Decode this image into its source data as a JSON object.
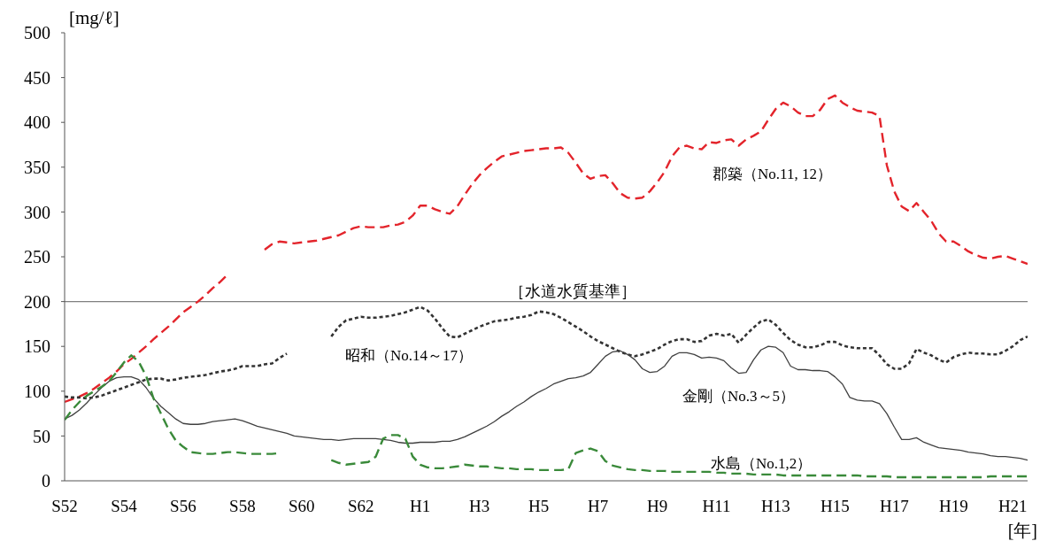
{
  "chart_data": {
    "type": "line",
    "ylabel": "[mg/ℓ]",
    "xlabel": "[年]",
    "categories": [
      "S52",
      null,
      null,
      null,
      null,
      null,
      null,
      null,
      "S54",
      null,
      null,
      null,
      null,
      null,
      null,
      null,
      "S56",
      null,
      null,
      null,
      null,
      null,
      null,
      null,
      "S58",
      null,
      null,
      null,
      null,
      null,
      null,
      null,
      "S60",
      null,
      null,
      null,
      null,
      null,
      null,
      null,
      "S62",
      null,
      null,
      null,
      null,
      null,
      null,
      null,
      "H1",
      null,
      null,
      null,
      null,
      null,
      null,
      null,
      "H3",
      null,
      null,
      null,
      null,
      null,
      null,
      null,
      "H5",
      null,
      null,
      null,
      null,
      null,
      null,
      null,
      "H7",
      null,
      null,
      null,
      null,
      null,
      null,
      null,
      "H9",
      null,
      null,
      null,
      null,
      null,
      null,
      null,
      "H11",
      null,
      null,
      null,
      null,
      null,
      null,
      null,
      "H13",
      null,
      null,
      null,
      null,
      null,
      null,
      null,
      "H15",
      null,
      null,
      null,
      null,
      null,
      null,
      null,
      "H17",
      null,
      null,
      null,
      null,
      null,
      null,
      null,
      "H19",
      null,
      null,
      null,
      null,
      null,
      null,
      null,
      "H21",
      null,
      null
    ],
    "ylim": [
      0,
      500
    ],
    "yticks": [
      0,
      50,
      100,
      150,
      200,
      250,
      300,
      350,
      400,
      450,
      500
    ],
    "ref_lines": [
      {
        "axis": "y",
        "value": 200,
        "label": "［水道水質基準］",
        "color": "#808080"
      }
    ],
    "series": [
      {
        "name": "郡築（No.11, 12）",
        "color": "#e3242b",
        "line_style": "dashed",
        "values": [
          88,
          91,
          94,
          98,
          103,
          109,
          115,
          122,
          130,
          136,
          143,
          150,
          158,
          165,
          172,
          180,
          188,
          194,
          200,
          207,
          215,
          222,
          230,
          null,
          null,
          null,
          null,
          258,
          264,
          267,
          266,
          265,
          266,
          267,
          268,
          270,
          272,
          274,
          278,
          282,
          284,
          283,
          283,
          283,
          285,
          286,
          289,
          296,
          307,
          307,
          303,
          300,
          298,
          306,
          319,
          331,
          341,
          349,
          356,
          362,
          364,
          366,
          368,
          369,
          370,
          371,
          371,
          372,
          366,
          355,
          343,
          337,
          340,
          341,
          332,
          321,
          316,
          315,
          316,
          323,
          333,
          345,
          362,
          372,
          374,
          371,
          370,
          378,
          377,
          380,
          381,
          374,
          381,
          385,
          390,
          403,
          415,
          422,
          418,
          411,
          407,
          407,
          414,
          426,
          430,
          422,
          417,
          413,
          412,
          411,
          407,
          352,
          323,
          306,
          301,
          310,
          300,
          290,
          276,
          267,
          267,
          262,
          256,
          252,
          249,
          248,
          250,
          251,
          248,
          245,
          242
        ]
      },
      {
        "name": "昭和（No.14～17）",
        "color": "#333333",
        "line_style": "dotted",
        "values": [
          94,
          93,
          93,
          92,
          93,
          95,
          98,
          101,
          104,
          107,
          110,
          113,
          114,
          114,
          112,
          113,
          115,
          116,
          117,
          118,
          120,
          122,
          123,
          125,
          128,
          128,
          128,
          130,
          131,
          137,
          142,
          null,
          null,
          null,
          null,
          null,
          161,
          172,
          179,
          181,
          183,
          182,
          182,
          183,
          184,
          186,
          188,
          191,
          194,
          190,
          181,
          170,
          161,
          160,
          164,
          168,
          172,
          175,
          178,
          179,
          180,
          182,
          183,
          185,
          189,
          188,
          186,
          182,
          177,
          172,
          167,
          161,
          156,
          152,
          148,
          144,
          141,
          139,
          141,
          144,
          147,
          152,
          156,
          158,
          158,
          155,
          156,
          162,
          164,
          162,
          164,
          154,
          163,
          171,
          178,
          180,
          174,
          165,
          157,
          152,
          149,
          149,
          151,
          155,
          155,
          151,
          149,
          148,
          148,
          148,
          140,
          130,
          125,
          125,
          131,
          147,
          143,
          140,
          135,
          132,
          138,
          141,
          143,
          142,
          142,
          141,
          141,
          145,
          150,
          157,
          161
        ]
      },
      {
        "name": "金剛（No.3～5）",
        "color": "#404040",
        "line_style": "solid",
        "values": [
          69,
          73,
          79,
          87,
          96,
          104,
          111,
          115,
          116,
          116,
          113,
          104,
          92,
          83,
          76,
          69,
          64,
          63,
          63,
          64,
          66,
          67,
          68,
          69,
          67,
          64,
          61,
          59,
          57,
          55,
          53,
          50,
          49,
          48,
          47,
          46,
          46,
          45,
          46,
          47,
          47,
          47,
          47,
          46,
          45,
          43,
          42,
          42,
          43,
          43,
          43,
          44,
          44,
          46,
          49,
          53,
          57,
          61,
          66,
          72,
          77,
          83,
          88,
          94,
          99,
          103,
          108,
          111,
          114,
          115,
          117,
          121,
          130,
          139,
          144,
          145,
          141,
          135,
          125,
          121,
          122,
          128,
          139,
          143,
          143,
          141,
          137,
          138,
          137,
          134,
          126,
          120,
          121,
          135,
          146,
          150,
          149,
          143,
          128,
          124,
          124,
          123,
          123,
          122,
          116,
          108,
          93,
          90,
          89,
          89,
          86,
          75,
          60,
          46,
          46,
          48,
          43,
          40,
          37,
          36,
          35,
          34,
          32,
          31,
          30,
          28,
          27,
          27,
          26,
          25,
          23
        ]
      },
      {
        "name": "水島（No.1,2）",
        "color": "#3a8a3a",
        "line_style": "dashed",
        "values": [
          68,
          79,
          88,
          95,
          100,
          105,
          111,
          121,
          132,
          140,
          133,
          117,
          92,
          75,
          58,
          45,
          38,
          32,
          31,
          30,
          30,
          31,
          32,
          32,
          31,
          30,
          30,
          30,
          30,
          31,
          null,
          null,
          null,
          null,
          null,
          null,
          23,
          20,
          18,
          19,
          20,
          21,
          27,
          47,
          51,
          51,
          47,
          27,
          18,
          15,
          14,
          14,
          15,
          16,
          18,
          17,
          16,
          16,
          15,
          14,
          14,
          13,
          13,
          13,
          12,
          12,
          12,
          12,
          13,
          31,
          34,
          36,
          33,
          22,
          17,
          15,
          13,
          12,
          12,
          11,
          11,
          11,
          10,
          10,
          10,
          10,
          10,
          10,
          9,
          9,
          8,
          8,
          8,
          7,
          7,
          7,
          7,
          6,
          6,
          6,
          6,
          6,
          6,
          6,
          6,
          6,
          6,
          6,
          5,
          5,
          5,
          5,
          4,
          4,
          4,
          4,
          4,
          4,
          4,
          4,
          4,
          4,
          4,
          4,
          4,
          5,
          5,
          5,
          5,
          5,
          5
        ]
      }
    ]
  }
}
